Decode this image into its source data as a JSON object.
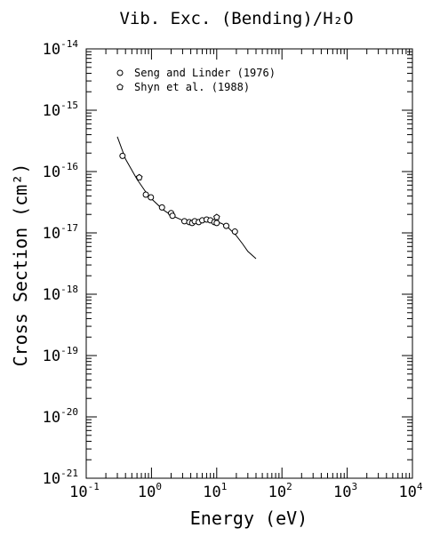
{
  "chart_data": {
    "type": "scatter",
    "title": "Vib. Exc. (Bending)/H₂O",
    "xlabel": "Energy (eV)",
    "ylabel": "Cross Section (cm²)",
    "xscale": "log",
    "yscale": "log",
    "xlim": [
      0.1,
      10000
    ],
    "ylim": [
      1e-21,
      1e-14
    ],
    "x_tick_labels": [
      {
        "base": "10",
        "exp": "-1"
      },
      {
        "base": "10",
        "exp": "0"
      },
      {
        "base": "10",
        "exp": "1"
      },
      {
        "base": "10",
        "exp": "2"
      },
      {
        "base": "10",
        "exp": "3"
      },
      {
        "base": "10",
        "exp": "4"
      }
    ],
    "y_tick_labels": [
      {
        "base": "10",
        "exp": "-21"
      },
      {
        "base": "10",
        "exp": "-20"
      },
      {
        "base": "10",
        "exp": "-19"
      },
      {
        "base": "10",
        "exp": "-18"
      },
      {
        "base": "10",
        "exp": "-17"
      },
      {
        "base": "10",
        "exp": "-16"
      },
      {
        "base": "10",
        "exp": "-15"
      },
      {
        "base": "10",
        "exp": "-14"
      }
    ],
    "legend_position": "top-left",
    "series": [
      {
        "name": "Seng and Linder (1976)",
        "marker": "circle",
        "x": [
          0.36,
          0.82,
          0.98,
          1.45,
          2.0,
          2.1,
          3.2,
          3.8,
          4.2,
          4.6,
          5.3,
          6.0,
          7.0,
          8.0,
          9.2,
          10.0,
          14.0,
          19.0
        ],
        "y": [
          1.8e-16,
          4.2e-17,
          3.8e-17,
          2.6e-17,
          2.1e-17,
          1.9e-17,
          1.55e-17,
          1.5e-17,
          1.45e-17,
          1.55e-17,
          1.5e-17,
          1.6e-17,
          1.65e-17,
          1.6e-17,
          1.5e-17,
          1.45e-17,
          1.3e-17,
          1.05e-17
        ]
      },
      {
        "name": "Shyn et al. (1988)",
        "marker": "pentagon",
        "x": [
          0.65,
          10.0
        ],
        "y": [
          8e-17,
          1.8e-17
        ]
      }
    ],
    "recommended_curve": {
      "x": [
        0.3,
        0.4,
        0.6,
        0.8,
        1.0,
        1.5,
        2.0,
        3.0,
        4.0,
        5.0,
        6.0,
        7.0,
        8.0,
        10.0,
        12.0,
        15.0,
        20.0,
        25.0,
        30.0,
        40.0
      ],
      "y": [
        3.7e-16,
        1.6e-16,
        7.5e-17,
        4.8e-17,
        3.6e-17,
        2.4e-17,
        1.95e-17,
        1.6e-17,
        1.5e-17,
        1.48e-17,
        1.5e-17,
        1.53e-17,
        1.55e-17,
        1.52e-17,
        1.42e-17,
        1.22e-17,
        9e-18,
        6.6e-18,
        5e-18,
        3.8e-18
      ]
    }
  }
}
